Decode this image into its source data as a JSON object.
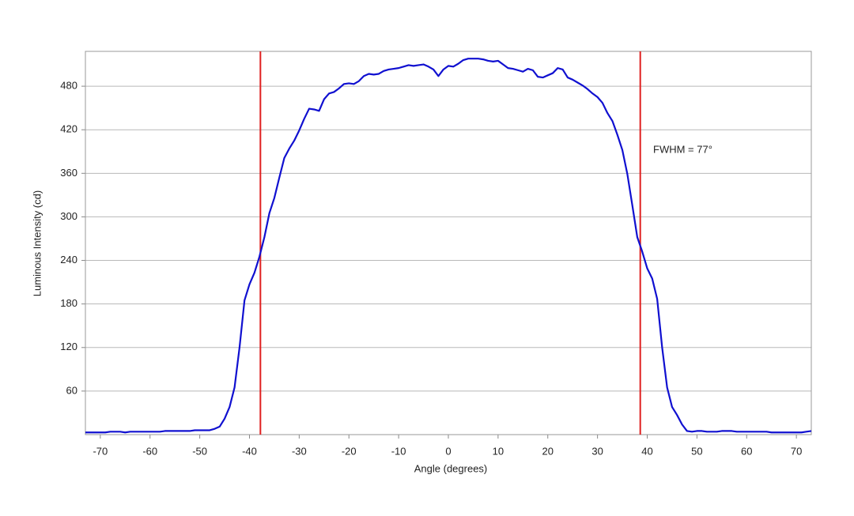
{
  "chart_data": {
    "type": "line",
    "xlabel": "Angle (degrees)",
    "ylabel": "Luminous Intensity (cd)",
    "x": [
      -73,
      -72,
      -71,
      -70,
      -69,
      -68,
      -67,
      -66,
      -65,
      -64,
      -63,
      -62,
      -61,
      -60,
      -59,
      -58,
      -57,
      -56,
      -55,
      -54,
      -53,
      -52,
      -51,
      -50,
      -49,
      -48,
      -47,
      -46,
      -45,
      -44,
      -43,
      -42,
      -41,
      -40,
      -39,
      -38,
      -37,
      -36,
      -35,
      -34,
      -33,
      -32,
      -31,
      -30,
      -29,
      -28,
      -27,
      -26,
      -25,
      -24,
      -23,
      -22,
      -21,
      -20,
      -19,
      -18,
      -17,
      -16,
      -15,
      -14,
      -13,
      -12,
      -11,
      -10,
      -9,
      -8,
      -7,
      -6,
      -5,
      -4,
      -3,
      -2,
      -1,
      0,
      1,
      2,
      3,
      4,
      5,
      6,
      7,
      8,
      9,
      10,
      11,
      12,
      13,
      14,
      15,
      16,
      17,
      18,
      19,
      20,
      21,
      22,
      23,
      24,
      25,
      26,
      27,
      28,
      29,
      30,
      31,
      32,
      33,
      34,
      35,
      36,
      37,
      38,
      39,
      40,
      41,
      42,
      43,
      44,
      45,
      46,
      47,
      48,
      49,
      50,
      51,
      52,
      53,
      54,
      55,
      56,
      57,
      58,
      59,
      60,
      61,
      62,
      63,
      64,
      65,
      66,
      67,
      68,
      69,
      70,
      71,
      72,
      73
    ],
    "values": [
      3,
      3,
      3,
      3,
      3,
      4,
      4,
      4,
      3,
      4,
      4,
      4,
      4,
      4,
      4,
      4,
      5,
      5,
      5,
      5,
      5,
      5,
      6,
      6,
      6,
      6,
      8,
      11,
      22,
      38,
      65,
      120,
      185,
      207,
      223,
      245,
      272,
      305,
      326,
      354,
      381,
      394,
      405,
      419,
      435,
      449,
      448,
      446,
      462,
      470,
      472,
      477,
      483,
      484,
      483,
      487,
      494,
      497,
      496,
      497,
      501,
      503,
      504,
      505,
      507,
      509,
      508,
      509,
      510,
      507,
      503,
      494,
      503,
      508,
      507,
      511,
      516,
      518,
      518,
      518,
      517,
      515,
      514,
      515,
      510,
      505,
      504,
      502,
      500,
      504,
      502,
      493,
      492,
      495,
      498,
      505,
      503,
      492,
      489,
      485,
      481,
      476,
      470,
      465,
      457,
      443,
      432,
      413,
      392,
      359,
      316,
      272,
      252,
      229,
      215,
      187,
      120,
      65,
      38,
      27,
      14,
      5,
      4,
      5,
      5,
      4,
      4,
      4,
      5,
      5,
      5,
      4,
      4,
      4,
      4,
      4,
      4,
      4,
      3,
      3,
      3,
      3,
      3,
      3,
      3,
      4,
      5
    ],
    "color": "#1010d0",
    "xlim": [
      -73,
      73
    ],
    "xticks": [
      -70,
      -60,
      -50,
      -40,
      -30,
      -20,
      -10,
      0,
      10,
      20,
      30,
      40,
      50,
      60,
      70
    ],
    "ylim": [
      0,
      528
    ],
    "yticks": [
      60,
      120,
      180,
      240,
      300,
      360,
      420,
      480
    ],
    "grid": true,
    "vlines": [
      {
        "x": -37.8,
        "color": "#e02020"
      },
      {
        "x": 38.6,
        "color": "#e02020"
      }
    ],
    "annotation": "FWHM = 77°"
  }
}
